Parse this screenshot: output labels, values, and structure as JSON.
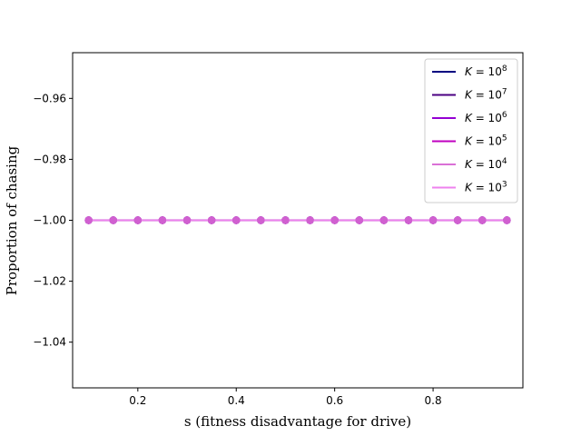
{
  "chart_data": {
    "type": "line",
    "title": "",
    "xlabel": "s (fitness disadvantage for drive)",
    "ylabel": "Proportion of chasing",
    "xlim": [
      0.0675,
      0.9825
    ],
    "ylim": [
      -1.055,
      -0.945
    ],
    "xticks": [
      0.2,
      0.4,
      0.6,
      0.8
    ],
    "xtick_labels": [
      "0.2",
      "0.4",
      "0.6",
      "0.8"
    ],
    "yticks": [
      -0.96,
      -0.98,
      -1.0,
      -1.02,
      -1.04
    ],
    "ytick_labels": [
      "−0.96",
      "−0.98",
      "−1.00",
      "−1.02",
      "−1.04"
    ],
    "grid": false,
    "legend_position": "top-right",
    "x": [
      0.1,
      0.15,
      0.2,
      0.25,
      0.3,
      0.35,
      0.4,
      0.45,
      0.5,
      0.55,
      0.6,
      0.65,
      0.7,
      0.75,
      0.8,
      0.85,
      0.9,
      0.95
    ],
    "series": [
      {
        "name": "K = 10^8",
        "exponent": "8",
        "color": "#000080",
        "marker_color": "#000080",
        "values": [
          -1,
          -1,
          -1,
          -1,
          -1,
          -1,
          -1,
          -1,
          -1,
          -1,
          -1,
          -1,
          -1,
          -1,
          -1,
          -1,
          -1,
          -1
        ]
      },
      {
        "name": "K = 10^7",
        "exponent": "7",
        "color": "#4b0082",
        "marker_color": "#4b0082",
        "values": [
          -1,
          -1,
          -1,
          -1,
          -1,
          -1,
          -1,
          -1,
          -1,
          -1,
          -1,
          -1,
          -1,
          -1,
          -1,
          -1,
          -1,
          -1
        ]
      },
      {
        "name": "K = 10^6",
        "exponent": "6",
        "color": "#9400d3",
        "marker_color": "#9400d3",
        "values": [
          -1,
          -1,
          -1,
          -1,
          -1,
          -1,
          -1,
          -1,
          -1,
          -1,
          -1,
          -1,
          -1,
          -1,
          -1,
          -1,
          -1,
          -1
        ]
      },
      {
        "name": "K = 10^5",
        "exponent": "5",
        "color": "#c000c0",
        "marker_color": "#c000c0",
        "values": [
          -1,
          -1,
          -1,
          -1,
          -1,
          -1,
          -1,
          -1,
          -1,
          -1,
          -1,
          -1,
          -1,
          -1,
          -1,
          -1,
          -1,
          -1
        ]
      },
      {
        "name": "K = 10^4",
        "exponent": "4",
        "color": "#da70d6",
        "marker_color": "#da70d6",
        "values": [
          -1,
          -1,
          -1,
          -1,
          -1,
          -1,
          -1,
          -1,
          -1,
          -1,
          -1,
          -1,
          -1,
          -1,
          -1,
          -1,
          -1,
          -1
        ]
      },
      {
        "name": "K = 10^3",
        "exponent": "3",
        "color": "#ee82ee",
        "marker_color": "#d060d0",
        "values": [
          -1,
          -1,
          -1,
          -1,
          -1,
          -1,
          -1,
          -1,
          -1,
          -1,
          -1,
          -1,
          -1,
          -1,
          -1,
          -1,
          -1,
          -1
        ]
      }
    ]
  }
}
